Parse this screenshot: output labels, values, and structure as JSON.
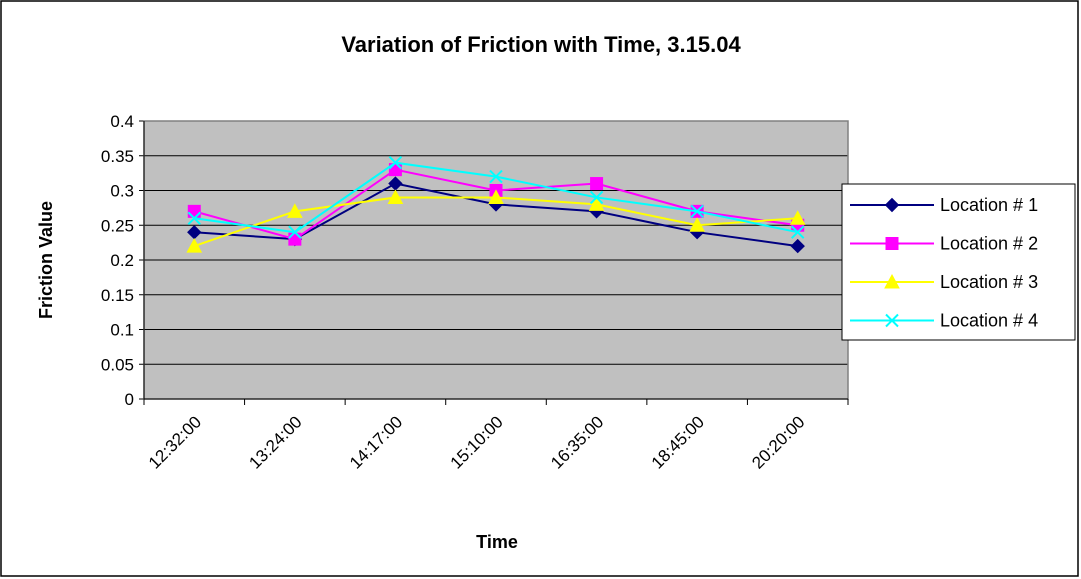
{
  "chart_data": {
    "type": "line",
    "title": "Variation of Friction with Time, 3.15.04",
    "xlabel": "Time",
    "ylabel": "Friction Value",
    "categories": [
      "12:32:00",
      "13:24:00",
      "14:17:00",
      "15:10:00",
      "16:35:00",
      "18:45:00",
      "20:20:00"
    ],
    "ylim": [
      0,
      0.4
    ],
    "yticks": [
      "0",
      "0.05",
      "0.1",
      "0.15",
      "0.2",
      "0.25",
      "0.3",
      "0.35",
      "0.4"
    ],
    "grid": true,
    "legend": "right",
    "plot_background": "#c0c0c0",
    "series": [
      {
        "name": "Location # 1",
        "color": "#000080",
        "marker": "diamond",
        "values": [
          0.24,
          0.23,
          0.31,
          0.28,
          0.27,
          0.24,
          0.22
        ]
      },
      {
        "name": "Location # 2",
        "color": "#ff00ff",
        "marker": "square",
        "values": [
          0.27,
          0.23,
          0.33,
          0.3,
          0.31,
          0.27,
          0.25
        ]
      },
      {
        "name": "Location # 3",
        "color": "#ffff00",
        "marker": "triangle",
        "values": [
          0.22,
          0.27,
          0.29,
          0.29,
          0.28,
          0.25,
          0.26
        ]
      },
      {
        "name": "Location # 4",
        "color": "#00ffff",
        "marker": "x",
        "values": [
          0.26,
          0.24,
          0.34,
          0.32,
          0.29,
          0.27,
          0.24
        ]
      }
    ]
  }
}
